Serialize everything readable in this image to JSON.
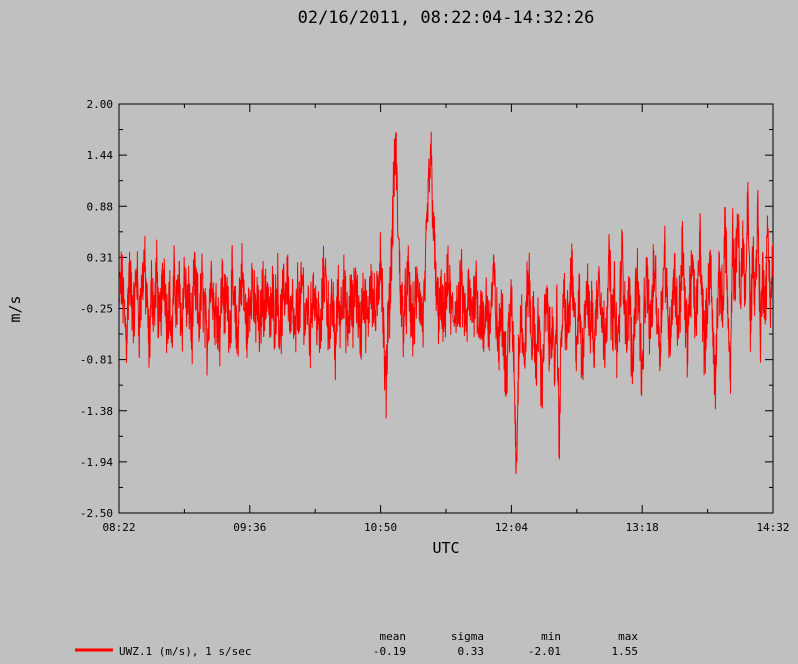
{
  "chart_data": {
    "type": "line",
    "title": "02/16/2011, 08:22:04-14:32:26",
    "xlabel": "UTC",
    "ylabel": "m/s",
    "x_ticks": [
      "08:22",
      "09:36",
      "10:50",
      "12:04",
      "13:18",
      "14:32"
    ],
    "y_ticks": [
      "2.00",
      "1.44",
      "0.88",
      "0.31",
      "-0.25",
      "-0.81",
      "-1.38",
      "-1.94",
      "-2.50"
    ],
    "xlim": [
      "08:22:04",
      "14:32:26"
    ],
    "ylim": [
      -2.5,
      2.0
    ],
    "grid": false,
    "series": [
      {
        "name": "UWZ.1 (m/s), 1 s/sec",
        "color": "#ff0000",
        "stats": {
          "mean": "-0.19",
          "sigma": "0.33",
          "min": "-2.01",
          "max": "1.55"
        },
        "values": [
          -0.17,
          0.05,
          -0.26,
          -0.57,
          0.12,
          -0.1,
          -0.33,
          0.2,
          -0.42,
          -0.05,
          0.26,
          -0.16,
          -0.7,
          0.04,
          -0.29,
          0.15,
          -0.5,
          -0.12,
          0.22,
          -0.37,
          -0.08,
          -0.61,
          0.1,
          -0.22,
          -0.02,
          -0.46,
          0.18,
          -0.3,
          -0.14,
          -0.55,
          0.08,
          -0.2,
          -0.4,
          0.03,
          -0.28,
          -0.66,
          -0.09,
          0.14,
          -0.35,
          -0.18,
          -0.52,
          0.06,
          -0.24,
          -0.11,
          -0.44,
          0.0,
          -0.31,
          -0.6,
          -0.05,
          0.11,
          -0.27,
          -0.48,
          -0.13,
          0.09,
          -0.36,
          -0.2,
          -0.58,
          -0.03,
          -0.25,
          0.05,
          -0.45,
          -0.15,
          -0.32,
          0.02,
          -0.53,
          -0.21,
          -0.07,
          0.13,
          -0.39,
          -0.26,
          -0.64,
          -0.1,
          -0.3,
          0.07,
          -0.43,
          -0.16,
          -0.55,
          0.01,
          -0.22,
          -0.34,
          -0.62,
          -0.06,
          0.16,
          -0.28,
          -0.47,
          -0.19,
          -0.73,
          -0.08,
          -0.33,
          0.04,
          -0.25,
          -0.51,
          -0.12,
          -0.38,
          0.1,
          -0.24,
          -0.58,
          -0.04,
          -0.29,
          -0.44,
          0.18,
          -0.2,
          -0.35,
          -0.11,
          0.48,
          -0.4,
          -1.2,
          -0.3,
          0.0,
          0.9,
          1.55,
          0.6,
          -0.1,
          -0.35,
          -0.22,
          0.08,
          -0.3,
          -0.42,
          -0.15,
          0.02,
          -0.28,
          -0.38,
          0.25,
          1.05,
          1.45,
          0.7,
          -0.05,
          -0.32,
          -0.18,
          -0.47,
          -0.1,
          0.05,
          -0.26,
          -0.4,
          -0.14,
          -0.33,
          0.02,
          -0.22,
          -0.5,
          -0.08,
          -0.3,
          -0.17,
          0.06,
          -0.38,
          -0.25,
          -0.6,
          -0.12,
          -0.45,
          -0.2,
          0.12,
          -0.35,
          -0.7,
          -0.15,
          -0.52,
          -1.05,
          -0.4,
          -0.25,
          -0.8,
          -2.01,
          -0.55,
          -0.3,
          -0.95,
          -0.2,
          0.1,
          -0.6,
          -0.42,
          -0.85,
          -0.3,
          -1.2,
          -0.5,
          -0.15,
          -0.68,
          -0.35,
          -1.0,
          -0.22,
          -1.65,
          -0.45,
          -0.1,
          -0.55,
          -0.28,
          0.15,
          -0.4,
          -0.62,
          -0.18,
          -0.9,
          -0.33,
          0.05,
          -0.5,
          -0.24,
          -0.72,
          -0.12,
          0.22,
          -0.38,
          -0.58,
          -0.2,
          0.3,
          -0.45,
          -0.1,
          -0.75,
          -0.28,
          0.35,
          -0.15,
          -0.55,
          -0.05,
          -0.95,
          -0.3,
          0.18,
          -0.4,
          -1.05,
          -0.2,
          0.08,
          -0.5,
          -0.15,
          0.25,
          -0.35,
          -0.65,
          -0.08,
          0.4,
          -0.25,
          -0.55,
          -0.12,
          0.15,
          -0.42,
          -0.18,
          0.45,
          -0.3,
          -0.6,
          -0.05,
          0.2,
          -0.38,
          -0.15,
          0.55,
          -0.25,
          -0.7,
          -0.1,
          0.3,
          -0.45,
          -1.05,
          -0.2,
          0.1,
          -0.35,
          0.8,
          -0.25,
          -1.15,
          0.5,
          -0.05,
          0.9,
          -0.3,
          0.6,
          -0.15,
          0.95,
          -0.4,
          0.3,
          -0.1,
          0.85,
          -0.55,
          0.2,
          -0.25,
          0.65,
          -0.2,
          0.35
        ]
      }
    ]
  },
  "legend": {
    "entry_label": "UWZ.1 (m/s), 1 s/sec",
    "headers": {
      "mean": "mean",
      "sigma": "sigma",
      "min": "min",
      "max": "max"
    },
    "values": {
      "mean": "-0.19",
      "sigma": "0.33",
      "min": "-2.01",
      "max": "1.55"
    }
  }
}
